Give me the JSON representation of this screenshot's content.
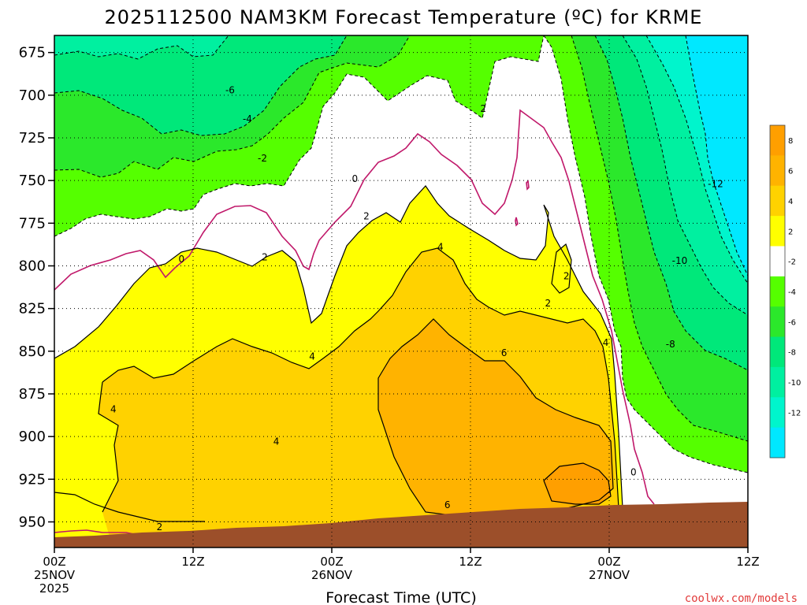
{
  "chart_data": {
    "type": "heatmap",
    "title": "2025112500 NAM3KM Forecast Temperature (ºC) for KRME",
    "xlabel": "Forecast Time (UTC)",
    "ylabel": "",
    "ylim": [
      965,
      665
    ],
    "y_ticks": [
      675,
      700,
      725,
      750,
      775,
      800,
      825,
      850,
      875,
      900,
      925,
      950
    ],
    "xlim": [
      0,
      60
    ],
    "x_ticks": [
      {
        "hour": 0,
        "line1": "00Z",
        "line2": "25NOV",
        "line3": "2025"
      },
      {
        "hour": 12,
        "line1": "12Z",
        "line2": "",
        "line3": ""
      },
      {
        "hour": 24,
        "line1": "00Z",
        "line2": "26NOV",
        "line3": ""
      },
      {
        "hour": 36,
        "line1": "12Z",
        "line2": "",
        "line3": ""
      },
      {
        "hour": 48,
        "line1": "00Z",
        "line2": "27NOV",
        "line3": ""
      },
      {
        "hour": 60,
        "line1": "12Z",
        "line2": "",
        "line3": ""
      }
    ],
    "grid": true,
    "colorbar": {
      "position": "right",
      "bins": [
        {
          "range": [
            8,
            10
          ],
          "color": "#ff9f00",
          "label": "8"
        },
        {
          "range": [
            6,
            8
          ],
          "color": "#ffb300",
          "label": "6"
        },
        {
          "range": [
            4,
            6
          ],
          "color": "#ffd200",
          "label": "4"
        },
        {
          "range": [
            2,
            4
          ],
          "color": "#ffff00",
          "label": "2"
        },
        {
          "range": [
            -2,
            2
          ],
          "color": "#ffffff",
          "label": "-2"
        },
        {
          "range": [
            -4,
            -2
          ],
          "color": "#55ff00",
          "label": "-4"
        },
        {
          "range": [
            -6,
            -4
          ],
          "color": "#2be82b",
          "label": "-6"
        },
        {
          "range": [
            -8,
            -6
          ],
          "color": "#00e87a",
          "label": "-8"
        },
        {
          "range": [
            -10,
            -8
          ],
          "color": "#00f0a0",
          "label": "-10"
        },
        {
          "range": [
            -12,
            -10
          ],
          "color": "#00f5cc",
          "label": "-12"
        },
        {
          "range": [
            -14,
            -12
          ],
          "color": "#00e8ff",
          "label": ""
        }
      ]
    },
    "contour_labels": [
      {
        "text": "-6",
        "hour": 15.2,
        "p": 697
      },
      {
        "text": "-4",
        "hour": 16.7,
        "p": 714
      },
      {
        "text": "-2",
        "hour": 18.0,
        "p": 737
      },
      {
        "text": "0",
        "hour": 11.0,
        "p": 796
      },
      {
        "text": "2",
        "hour": 18.2,
        "p": 795
      },
      {
        "text": "0",
        "hour": 26.0,
        "p": 749
      },
      {
        "text": "2",
        "hour": 27.0,
        "p": 771
      },
      {
        "text": "2",
        "hour": 37.1,
        "p": 708
      },
      {
        "text": "4",
        "hour": 33.4,
        "p": 789
      },
      {
        "text": "4",
        "hour": 22.3,
        "p": 853
      },
      {
        "text": "4",
        "hour": 5.1,
        "p": 884
      },
      {
        "text": "4",
        "hour": 19.2,
        "p": 903
      },
      {
        "text": "2",
        "hour": 9.1,
        "p": 953
      },
      {
        "text": "6",
        "hour": 38.9,
        "p": 851
      },
      {
        "text": "6",
        "hour": 34.0,
        "p": 940
      },
      {
        "text": "2",
        "hour": 42.7,
        "p": 822
      },
      {
        "text": "2",
        "hour": 44.3,
        "p": 806
      },
      {
        "text": "4",
        "hour": 47.7,
        "p": 845
      },
      {
        "text": "0",
        "hour": 50.1,
        "p": 921
      },
      {
        "text": "-8",
        "hour": 53.3,
        "p": 846
      },
      {
        "text": "-10",
        "hour": 54.1,
        "p": 797
      },
      {
        "text": "-12",
        "hour": 57.2,
        "p": 752
      }
    ]
  },
  "credit": "coolwx.com/models"
}
